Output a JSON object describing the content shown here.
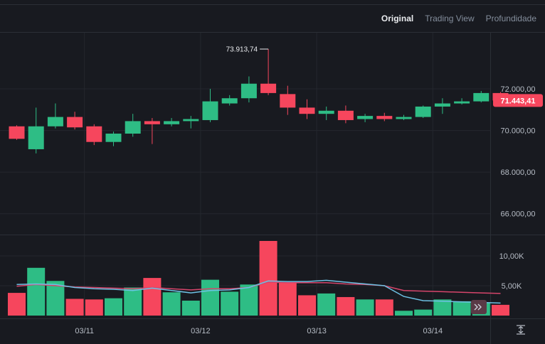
{
  "tabs": [
    {
      "label": "Original",
      "active": true
    },
    {
      "label": "Trading View",
      "active": false
    },
    {
      "label": "Profundidade",
      "active": false
    }
  ],
  "price_axis": {
    "ticks": [
      {
        "label": "72.000,00",
        "value": 72000
      },
      {
        "label": "70.000,00",
        "value": 70000
      },
      {
        "label": "68.000,00",
        "value": 68000
      },
      {
        "label": "66.000,00",
        "value": 66000
      }
    ],
    "current_price_label": "71.443,41",
    "current_price": 71443.41,
    "high_marker_label": "73.913,74",
    "high_marker": 73913.74
  },
  "volume_axis": {
    "ticks": [
      {
        "label": "10,00K",
        "value": 10000
      },
      {
        "label": "5,00K",
        "value": 5000
      }
    ]
  },
  "time_axis": {
    "ticks": [
      {
        "label": "03/11",
        "index": 3.5
      },
      {
        "label": "03/12",
        "index": 9.5
      },
      {
        "label": "03/13",
        "index": 15.5
      },
      {
        "label": "03/14",
        "index": 21.5
      }
    ]
  },
  "colors": {
    "up": "#2ebd85",
    "down": "#f6465d",
    "ma_fast": "#6ec1e4",
    "ma_slow": "#d6456b",
    "grid": "#24272e",
    "axis_text": "#b7bdc6",
    "background": "#181a20"
  },
  "icons": {
    "scroll_right": "double-chevron-right-icon",
    "expand": "vertical-expand-icon"
  },
  "chart_data": {
    "type": "candlestick",
    "ylim": [
      65000,
      74700
    ],
    "volume_ylim": [
      0,
      12500
    ],
    "candles": [
      {
        "open": 70200,
        "close": 69600,
        "high": 70250,
        "low": 69550,
        "volume": 3800
      },
      {
        "open": 69100,
        "close": 70200,
        "high": 71100,
        "low": 68900,
        "volume": 8000
      },
      {
        "open": 70200,
        "close": 70650,
        "high": 71300,
        "low": 70100,
        "volume": 5800
      },
      {
        "open": 70650,
        "close": 70150,
        "high": 70900,
        "low": 70050,
        "volume": 2800
      },
      {
        "open": 70200,
        "close": 69450,
        "high": 70300,
        "low": 69300,
        "volume": 2700
      },
      {
        "open": 69450,
        "close": 69850,
        "high": 69950,
        "low": 69250,
        "volume": 2900
      },
      {
        "open": 69850,
        "close": 70450,
        "high": 70800,
        "low": 69700,
        "volume": 4700
      },
      {
        "open": 70450,
        "close": 70300,
        "high": 70600,
        "low": 69350,
        "volume": 6300
      },
      {
        "open": 70300,
        "close": 70450,
        "high": 70600,
        "low": 70200,
        "volume": 3900
      },
      {
        "open": 70450,
        "close": 70550,
        "high": 70700,
        "low": 70100,
        "volume": 2500
      },
      {
        "open": 70500,
        "close": 71400,
        "high": 72000,
        "low": 70400,
        "volume": 6000
      },
      {
        "open": 71300,
        "close": 71550,
        "high": 71700,
        "low": 71200,
        "volume": 4000
      },
      {
        "open": 71550,
        "close": 72250,
        "high": 72600,
        "low": 71350,
        "volume": 5200
      },
      {
        "open": 72250,
        "close": 71800,
        "high": 73913.74,
        "low": 71700,
        "volume": 12500
      },
      {
        "open": 71750,
        "close": 71100,
        "high": 72150,
        "low": 70750,
        "volume": 5600
      },
      {
        "open": 71100,
        "close": 70800,
        "high": 71500,
        "low": 70550,
        "volume": 3400
      },
      {
        "open": 70800,
        "close": 70950,
        "high": 71150,
        "low": 70500,
        "volume": 3700
      },
      {
        "open": 70950,
        "close": 70500,
        "high": 71200,
        "low": 70350,
        "volume": 3100
      },
      {
        "open": 70550,
        "close": 70700,
        "high": 70800,
        "low": 70400,
        "volume": 2700
      },
      {
        "open": 70700,
        "close": 70550,
        "high": 70850,
        "low": 70450,
        "volume": 2700
      },
      {
        "open": 70550,
        "close": 70650,
        "high": 70750,
        "low": 70500,
        "volume": 800
      },
      {
        "open": 70650,
        "close": 71150,
        "high": 71200,
        "low": 70600,
        "volume": 1000
      },
      {
        "open": 71150,
        "close": 71300,
        "high": 71550,
        "low": 70800,
        "volume": 2700
      },
      {
        "open": 71300,
        "close": 71400,
        "high": 71550,
        "low": 71250,
        "volume": 2400
      },
      {
        "open": 71400,
        "close": 71800,
        "high": 71900,
        "low": 71350,
        "volume": 2100
      },
      {
        "open": 71800,
        "close": 71443.41,
        "high": 71850,
        "low": 71200,
        "volume": 1800
      }
    ],
    "ma_fast": [
      5200,
      5300,
      5200,
      4700,
      4500,
      4400,
      4200,
      4600,
      4200,
      3800,
      4200,
      4300,
      4700,
      5800,
      5700,
      5700,
      5900,
      5600,
      5300,
      5000,
      3200,
      2500,
      2400,
      2300,
      2200,
      2100
    ],
    "ma_slow": [
      4900,
      5200,
      5000,
      4800,
      4700,
      4600,
      4500,
      4700,
      4500,
      4300,
      4500,
      4500,
      4700,
      5600,
      5500,
      5500,
      5500,
      5300,
      5200,
      5000,
      4200,
      4100,
      4000,
      3900,
      3800,
      3700
    ]
  }
}
